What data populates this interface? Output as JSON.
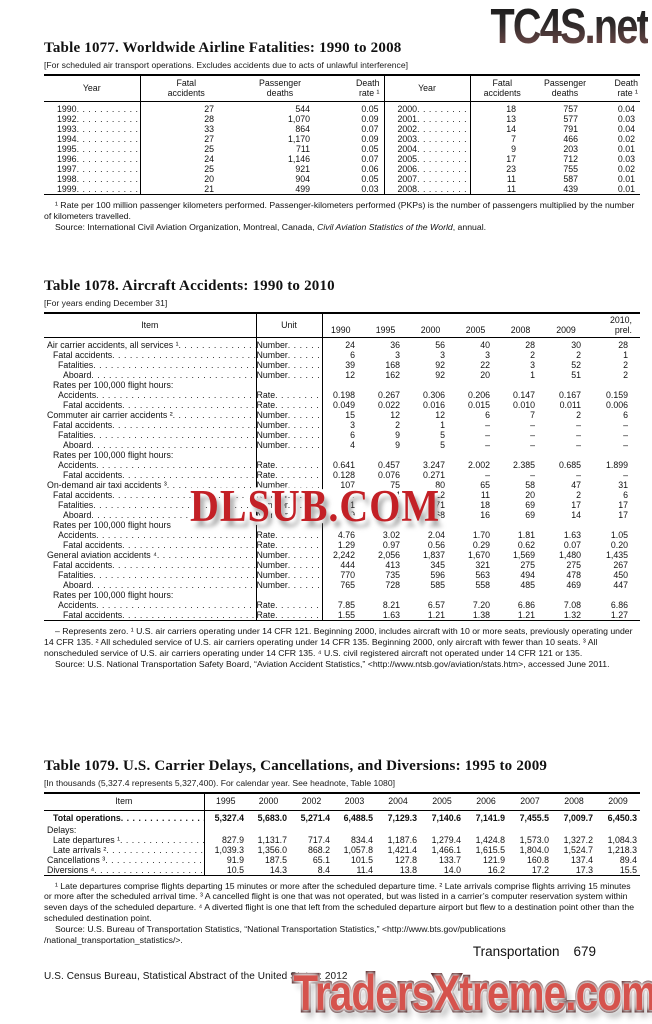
{
  "watermarks": {
    "top": "TC4S.net",
    "middle": "DLSUB.COM",
    "bottom": "TradersXtreme.com"
  },
  "table1077": {
    "title": "Table 1077. Worldwide Airline Fatalities: 1990 to 2008",
    "note": "[For scheduled air transport operations. Excludes accidents due to acts of unlawful interference]",
    "headers": {
      "year": "Year",
      "fatal": "Fatal accidents",
      "deaths": "Passenger deaths",
      "rate": "Death rate ¹"
    },
    "rows": [
      [
        "1990",
        "27",
        "544",
        "0.05",
        "2000",
        "18",
        "757",
        "0.04"
      ],
      [
        "1992",
        "28",
        "1,070",
        "0.09",
        "2001",
        "13",
        "577",
        "0.03"
      ],
      [
        "1993",
        "33",
        "864",
        "0.07",
        "2002",
        "14",
        "791",
        "0.04"
      ],
      [
        "1994",
        "27",
        "1,170",
        "0.09",
        "2003",
        "7",
        "466",
        "0.02"
      ],
      [
        "1995",
        "25",
        "711",
        "0.05",
        "2004",
        "9",
        "203",
        "0.01"
      ],
      [
        "1996",
        "24",
        "1,146",
        "0.07",
        "2005",
        "17",
        "712",
        "0.03"
      ],
      [
        "1997",
        "25",
        "921",
        "0.06",
        "2006",
        "23",
        "755",
        "0.02"
      ],
      [
        "1998",
        "20",
        "904",
        "0.05",
        "2007",
        "11",
        "587",
        "0.01"
      ],
      [
        "1999",
        "21",
        "499",
        "0.03",
        "2008",
        "11",
        "439",
        "0.01"
      ]
    ],
    "footnote": "¹ Rate per 100 million passenger kilometers performed. Passenger-kilometers performed (PKPs) is the number of passengers multiplied by the number of kilometers travelled.",
    "source_prefix": "Source: International Civil Aviation Organization, Montreal, Canada, ",
    "source_italic": "Civil Aviation Statistics of the World",
    "source_suffix": ", annual."
  },
  "table1078": {
    "title": "Table 1078. Aircraft Accidents: 1990 to 2010",
    "note": "[For years ending December 31]",
    "headers": {
      "item": "Item",
      "unit": "Unit"
    },
    "years": [
      "1990",
      "1995",
      "2000",
      "2005",
      "2008",
      "2009"
    ],
    "last_year": [
      "2010,",
      "prel."
    ],
    "rows": [
      {
        "l": "Air carrier accidents, all services ¹",
        "i": 0,
        "u": "Number",
        "v": [
          "24",
          "36",
          "56",
          "40",
          "28",
          "30",
          "28"
        ]
      },
      {
        "l": "Fatal accidents",
        "i": 1,
        "u": "Number",
        "v": [
          "6",
          "3",
          "3",
          "3",
          "2",
          "2",
          "1"
        ]
      },
      {
        "l": "Fatalities",
        "i": 2,
        "u": "Number",
        "v": [
          "39",
          "168",
          "92",
          "22",
          "3",
          "52",
          "2"
        ]
      },
      {
        "l": "Aboard",
        "i": 3,
        "u": "Number",
        "v": [
          "12",
          "162",
          "92",
          "20",
          "1",
          "51",
          "2"
        ]
      },
      {
        "l": "Rates per 100,000 flight hours:",
        "i": 1
      },
      {
        "l": "Accidents",
        "i": 2,
        "u": "Rate",
        "v": [
          "0.198",
          "0.267",
          "0.306",
          "0.206",
          "0.147",
          "0.167",
          "0.159"
        ]
      },
      {
        "l": "Fatal accidents",
        "i": 3,
        "u": "Rate",
        "v": [
          "0.049",
          "0.022",
          "0.016",
          "0.015",
          "0.010",
          "0.011",
          "0.006"
        ]
      },
      {
        "l": "Commuter air carrier accidents ²",
        "i": 0,
        "u": "Number",
        "v": [
          "15",
          "12",
          "12",
          "6",
          "7",
          "2",
          "6"
        ]
      },
      {
        "l": "Fatal accidents",
        "i": 1,
        "u": "Number",
        "v": [
          "3",
          "2",
          "1",
          "–",
          "–",
          "–",
          "–"
        ]
      },
      {
        "l": "Fatalities",
        "i": 2,
        "u": "Number",
        "v": [
          "6",
          "9",
          "5",
          "–",
          "–",
          "–",
          "–"
        ]
      },
      {
        "l": "Aboard",
        "i": 3,
        "u": "Number",
        "v": [
          "4",
          "9",
          "5",
          "–",
          "–",
          "–",
          "–"
        ]
      },
      {
        "l": "Rates per 100,000 flight hours:",
        "i": 1
      },
      {
        "l": "Accidents",
        "i": 2,
        "u": "Rate",
        "v": [
          "0.641",
          "0.457",
          "3.247",
          "2.002",
          "2.385",
          "0.685",
          "1.899"
        ]
      },
      {
        "l": "Fatal accidents",
        "i": 3,
        "u": "Rate",
        "v": [
          "0.128",
          "0.076",
          "0.271",
          "–",
          "–",
          "–",
          "–"
        ]
      },
      {
        "l": "On-demand air taxi accidents ³",
        "i": 0,
        "u": "Number",
        "v": [
          "107",
          "75",
          "80",
          "65",
          "58",
          "47",
          "31"
        ]
      },
      {
        "l": "Fatal accidents",
        "i": 1,
        "u": "Number",
        "v": [
          "29",
          "24",
          "22",
          "11",
          "20",
          "2",
          "6"
        ]
      },
      {
        "l": "Fatalities",
        "i": 2,
        "u": "Number",
        "v": [
          "51",
          "52",
          "71",
          "18",
          "69",
          "17",
          "17"
        ]
      },
      {
        "l": "Aboard",
        "i": 3,
        "u": "Number",
        "v": [
          "49",
          "52",
          "68",
          "16",
          "69",
          "14",
          "17"
        ]
      },
      {
        "l": "Rates per 100,000 flight hours",
        "i": 1
      },
      {
        "l": "Accidents",
        "i": 2,
        "u": "Rate",
        "v": [
          "4.76",
          "3.02",
          "2.04",
          "1.70",
          "1.81",
          "1.63",
          "1.05"
        ]
      },
      {
        "l": "Fatal accidents",
        "i": 3,
        "u": "Rate",
        "v": [
          "1.29",
          "0.97",
          "0.56",
          "0.29",
          "0.62",
          "0.07",
          "0.20"
        ]
      },
      {
        "l": "General aviation accidents ⁴",
        "i": 0,
        "u": "Number",
        "v": [
          "2,242",
          "2,056",
          "1,837",
          "1,670",
          "1,569",
          "1,480",
          "1,435"
        ]
      },
      {
        "l": "Fatal accidents",
        "i": 1,
        "u": "Number",
        "v": [
          "444",
          "413",
          "345",
          "321",
          "275",
          "275",
          "267"
        ]
      },
      {
        "l": "Fatalities",
        "i": 2,
        "u": "Number",
        "v": [
          "770",
          "735",
          "596",
          "563",
          "494",
          "478",
          "450"
        ]
      },
      {
        "l": "Aboard",
        "i": 3,
        "u": "Number",
        "v": [
          "765",
          "728",
          "585",
          "558",
          "485",
          "469",
          "447"
        ]
      },
      {
        "l": "Rates per 100,000 flight hours:",
        "i": 1
      },
      {
        "l": "Accidents",
        "i": 2,
        "u": "Rate",
        "v": [
          "7.85",
          "8.21",
          "6.57",
          "7.20",
          "6.86",
          "7.08",
          "6.86"
        ]
      },
      {
        "l": "Fatal accidents",
        "i": 3,
        "u": "Rate",
        "v": [
          "1.55",
          "1.63",
          "1.21",
          "1.38",
          "1.21",
          "1.32",
          "1.27"
        ]
      }
    ],
    "footnote": "– Represents zero. ¹ U.S. air carriers operating under 14 CFR 121. Beginning 2000, includes aircraft with 10 or more seats, previously operating under 14 CFR 135. ² All scheduled service of U.S. air carriers operating under 14 CFR 135. Beginning 2000, only aircraft with fewer than 10 seats. ³ All nonscheduled service of U.S. air carriers operating under 14 CFR 135. ⁴ U.S. civil registered aircraft not operated under 14 CFR 121 or 135.",
    "source": "Source: U.S. National Transportation Safety Board, “Aviation Accident Statistics,” <http://www.ntsb.gov/aviation/stats.htm>, accessed June 2011."
  },
  "table1079": {
    "title": "Table 1079. U.S. Carrier Delays, Cancellations, and Diversions: 1995 to 2009",
    "note": "[In thousands (5,327.4 represents 5,327,400). For calendar year. See headnote, Table 1080]",
    "headers": {
      "item": "Item"
    },
    "years": [
      "1995",
      "2000",
      "2002",
      "2003",
      "2004",
      "2005",
      "2006",
      "2007",
      "2008",
      "2009"
    ],
    "rows": [
      {
        "l": "Total operations",
        "i": 1,
        "b": true,
        "v": [
          "5,327.4",
          "5,683.0",
          "5,271.4",
          "6,488.5",
          "7,129.3",
          "7,140.6",
          "7,141.9",
          "7,455.5",
          "7,009.7",
          "6,450.3"
        ]
      },
      {
        "l": "Delays:",
        "i": 0,
        "sec": true
      },
      {
        "l": "Late departures ¹",
        "i": 1,
        "v": [
          "827.9",
          "1,131.7",
          "717.4",
          "834.4",
          "1,187.6",
          "1,279.4",
          "1,424.8",
          "1,573.0",
          "1,327.2",
          "1,084.3"
        ]
      },
      {
        "l": "Late arrivals ²",
        "i": 1,
        "v": [
          "1,039.3",
          "1,356.0",
          "868.2",
          "1,057.8",
          "1,421.4",
          "1,466.1",
          "1,615.5",
          "1,804.0",
          "1,524.7",
          "1,218.3"
        ]
      },
      {
        "l": "Cancellations ³",
        "i": 0,
        "v": [
          "91.9",
          "187.5",
          "65.1",
          "101.5",
          "127.8",
          "133.7",
          "121.9",
          "160.8",
          "137.4",
          "89.4"
        ]
      },
      {
        "l": "Diversions ⁴",
        "i": 0,
        "v": [
          "10.5",
          "14.3",
          "8.4",
          "11.4",
          "13.8",
          "14.0",
          "16.2",
          "17.2",
          "17.3",
          "15.5"
        ]
      }
    ],
    "footnote": "¹ Late departures comprise flights departing 15 minutes or more after the scheduled departure time. ² Late arrivals comprise flights arriving 15 minutes or more after the scheduled arrival time. ³ A cancelled flight is one that was not operated, but was listed in a carrier’s computer reservation system within seven days of the scheduled departure. ⁴ A diverted flight is one that left from the scheduled departure airport but flew to a destination point other than the scheduled destination point.",
    "source": "Source: U.S. Bureau of Transportation Statistics, “National Transportation Statistics,” <http://www.bts.gov/publications /national_transportation_statistics/>."
  },
  "footer": {
    "section": "Transportation",
    "page_number": "679",
    "census_line": "U.S. Census Bureau, Statistical Abstract of the United States: 2012"
  }
}
